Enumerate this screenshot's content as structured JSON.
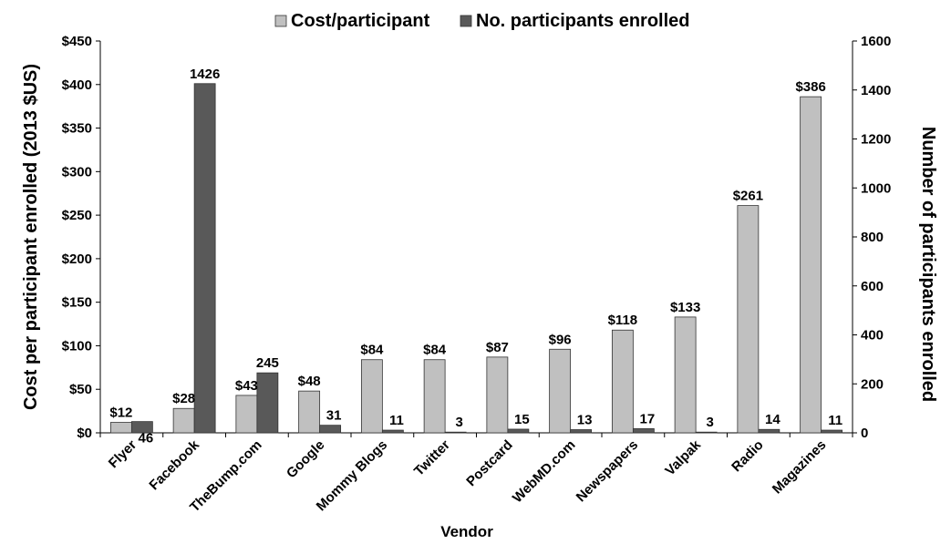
{
  "chart_data": {
    "type": "bar",
    "xlabel": "Vendor",
    "ylabel": "Cost per participant enrolled (2013 $US)",
    "y2label": "Number of participants enrolled",
    "ylim": [
      0,
      450
    ],
    "y2lim": [
      0,
      1600
    ],
    "yticks": [
      "$0",
      "$50",
      "$100",
      "$150",
      "$200",
      "$250",
      "$300",
      "$350",
      "$400",
      "$450"
    ],
    "y2ticks": [
      "0",
      "200",
      "400",
      "600",
      "800",
      "1000",
      "1200",
      "1400",
      "1600"
    ],
    "legend_position": "top-center",
    "grid": false,
    "categories": [
      "Flyer",
      "Facebook",
      "TheBump.com",
      "Google",
      "Mommy Blogs",
      "Twitter",
      "Postcard",
      "WebMD.com",
      "Newspapers",
      "Valpak",
      "Radio",
      "Magazines"
    ],
    "series": [
      {
        "name": "Cost/participant",
        "axis": "left",
        "color": "#c0c0c0",
        "values": [
          12,
          28,
          43,
          48,
          84,
          84,
          87,
          96,
          118,
          133,
          261,
          386
        ],
        "labels": [
          "$12",
          "$28",
          "$43",
          "$48",
          "$84",
          "$84",
          "$87",
          "$96",
          "$118",
          "$133",
          "$261",
          "$386"
        ]
      },
      {
        "name": "No. participants enrolled",
        "axis": "right",
        "color": "#595959",
        "values": [
          46,
          1426,
          245,
          31,
          11,
          3,
          15,
          13,
          17,
          3,
          14,
          11
        ],
        "labels": [
          "46",
          "1426",
          "245",
          "31",
          "11",
          "3",
          "15",
          "13",
          "17",
          "3",
          "14",
          "11"
        ]
      }
    ]
  }
}
